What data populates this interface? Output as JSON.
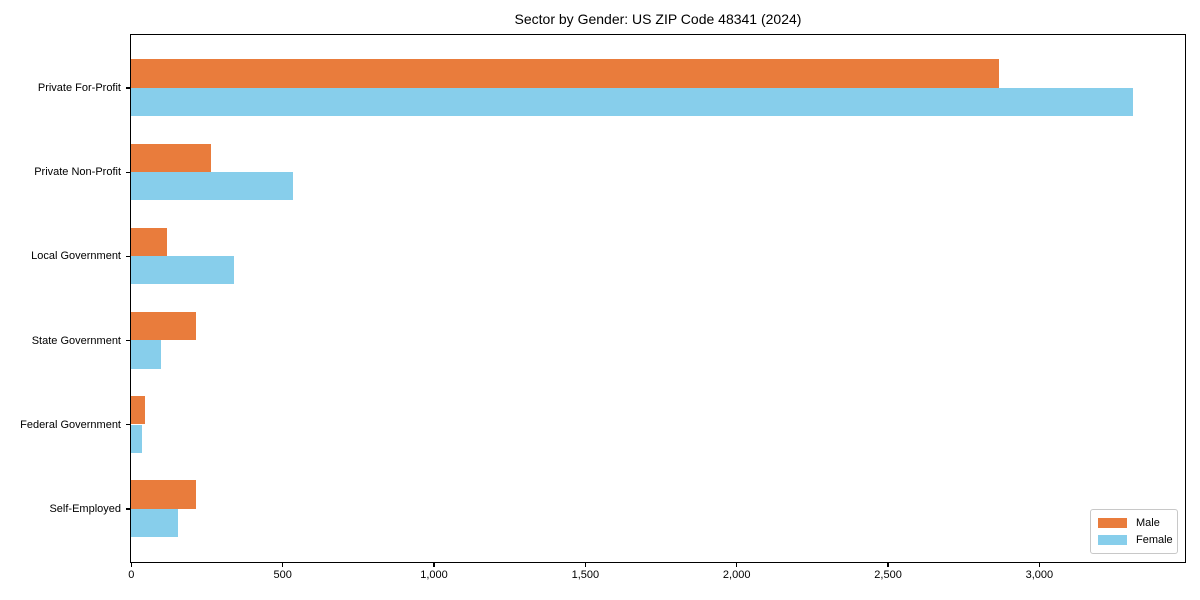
{
  "chart_data": {
    "type": "bar",
    "orientation": "horizontal",
    "title": "Sector by Gender: US ZIP Code 48341 (2024)",
    "categories": [
      "Private For-Profit",
      "Private Non-Profit",
      "Local Government",
      "State Government",
      "Federal Government",
      "Self-Employed"
    ],
    "series": [
      {
        "name": "Male",
        "color": "#E97C3C",
        "values": [
          2867,
          265,
          120,
          215,
          45,
          215
        ]
      },
      {
        "name": "Female",
        "color": "#87CEEB",
        "values": [
          3311,
          536,
          341,
          100,
          35,
          154
        ]
      }
    ],
    "xlabel": "",
    "ylabel": "",
    "xlim": [
      0,
      3480
    ],
    "xticks": [
      0,
      500,
      1000,
      1500,
      2000,
      2500,
      3000
    ],
    "xtick_labels": [
      "0",
      "500",
      "1,000",
      "1,500",
      "2,000",
      "2,500",
      "3,000"
    ],
    "grid": false,
    "legend": {
      "position": "lower-right",
      "entries": [
        "Male",
        "Female"
      ]
    },
    "axis_color": "#000000",
    "background_color": "#ffffff"
  }
}
